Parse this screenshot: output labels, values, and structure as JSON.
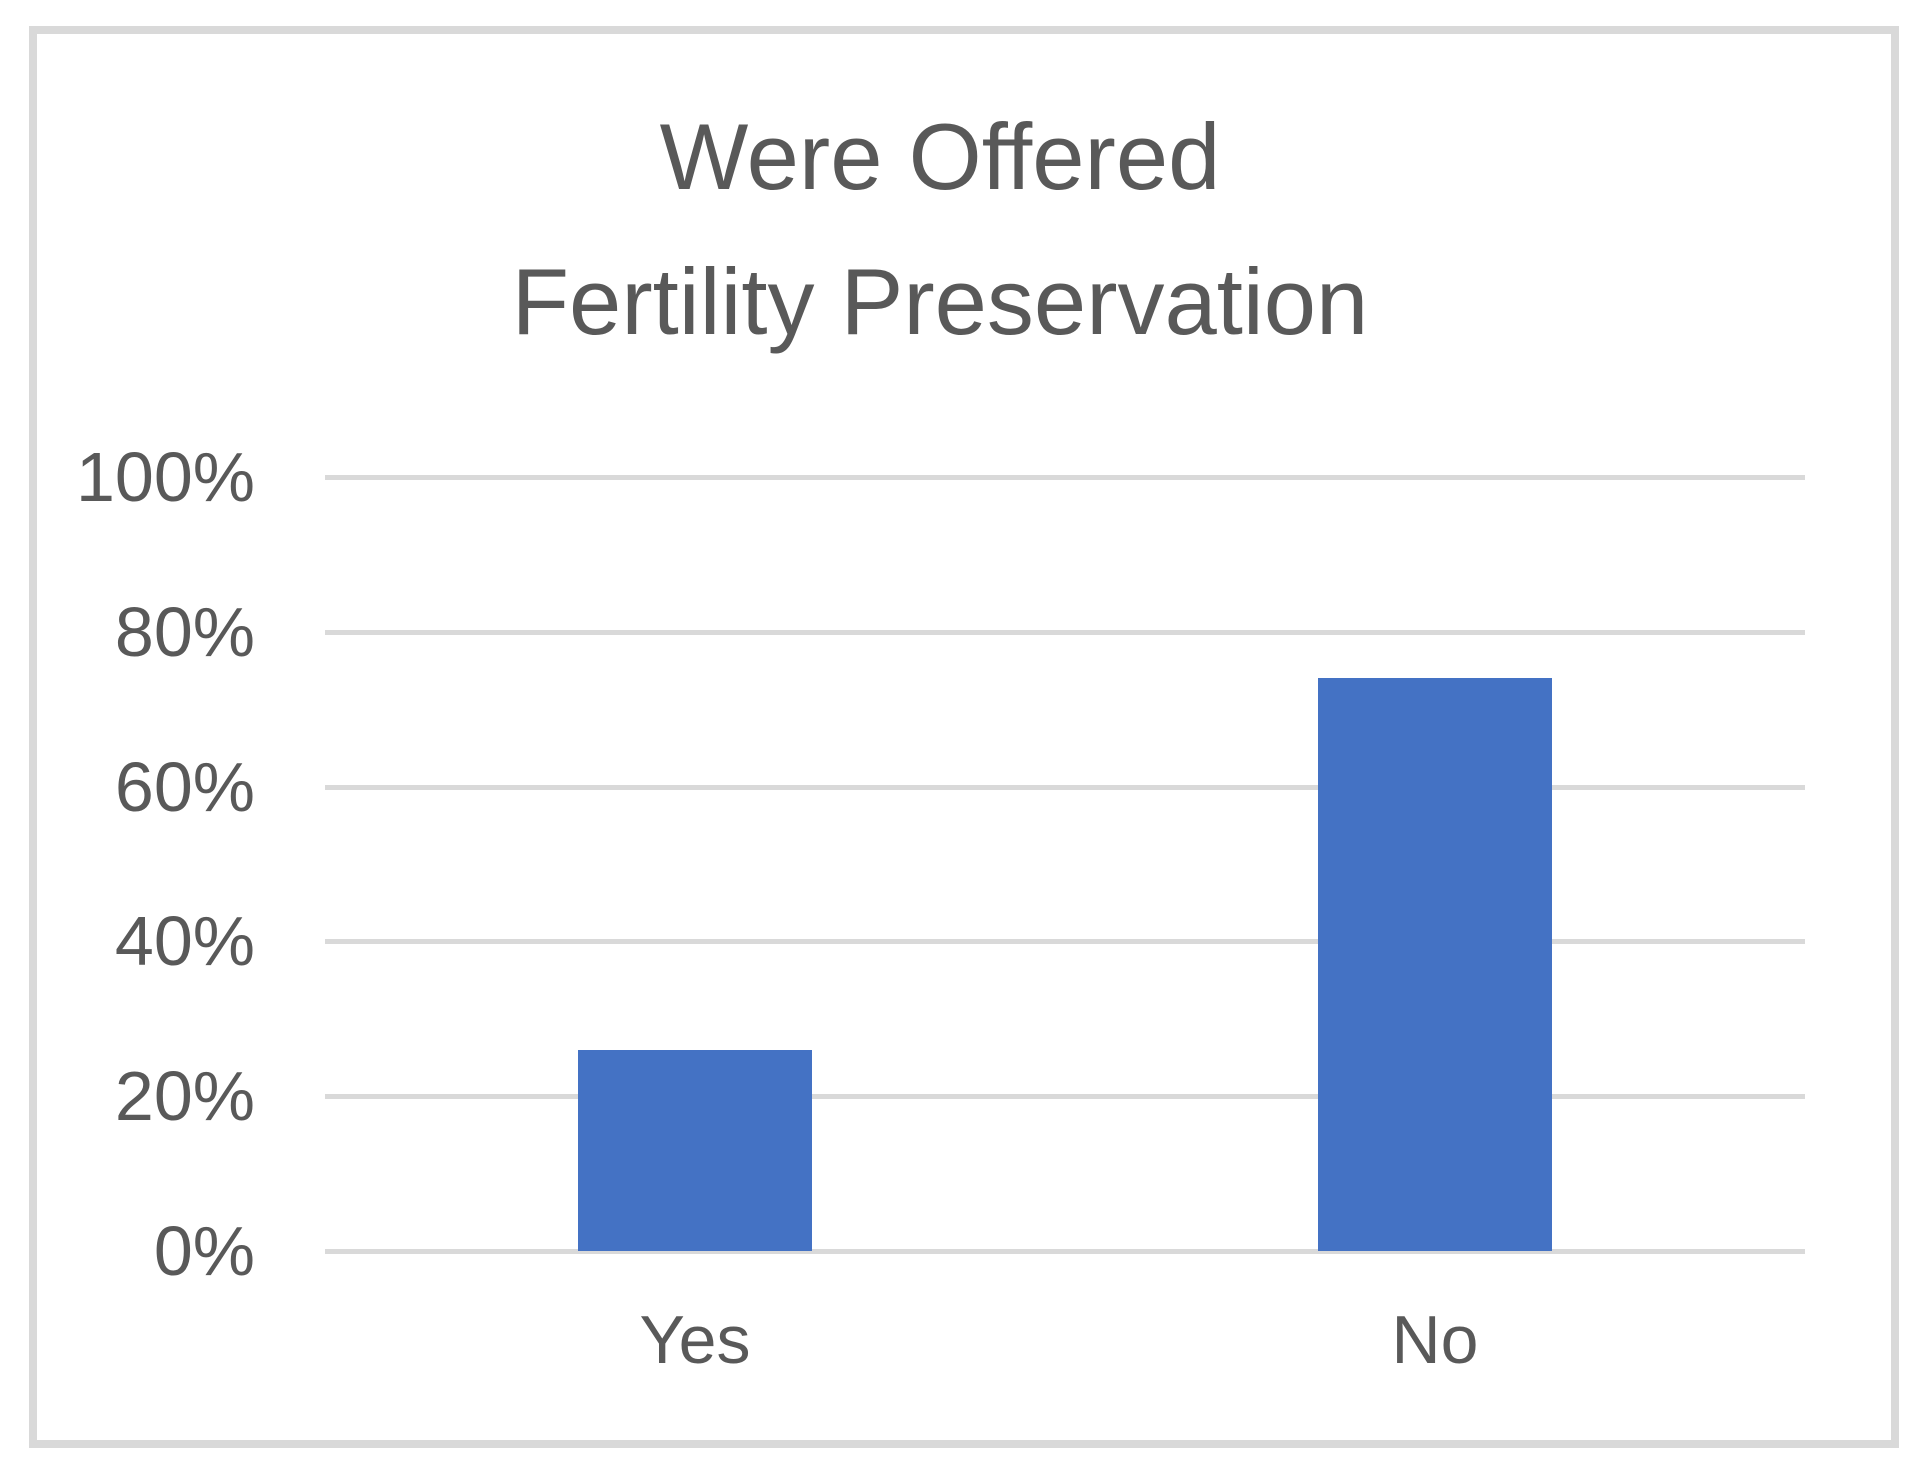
{
  "chart_data": {
    "type": "bar",
    "title": "Were Offered Fertility Preservation",
    "title_lines": [
      "Were Offered",
      "Fertility Preservation"
    ],
    "categories": [
      "Yes",
      "No"
    ],
    "values": [
      26,
      74
    ],
    "value_unit": "%",
    "xlabel": "",
    "ylabel": "",
    "ylim": [
      0,
      100
    ],
    "yticks": [
      {
        "value": 0,
        "label": "0%"
      },
      {
        "value": 20,
        "label": "20%"
      },
      {
        "value": 40,
        "label": "40%"
      },
      {
        "value": 60,
        "label": "60%"
      },
      {
        "value": 80,
        "label": "80%"
      },
      {
        "value": 100,
        "label": "100%"
      }
    ],
    "grid": "horizontal",
    "legend": "none",
    "colors": {
      "bar": "#4472C4",
      "gridline": "#D9D9D9",
      "border": "#D9D9D9",
      "text": "#595959",
      "background": "#FFFFFF"
    }
  }
}
